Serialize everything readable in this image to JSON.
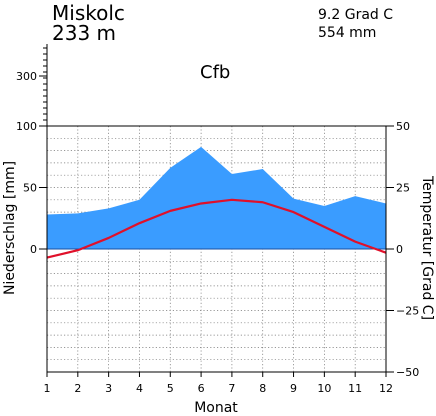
{
  "header": {
    "station": "Miskolc",
    "elevation": "233 m",
    "mean_temperature": "9.2 Grad C",
    "annual_precipitation": "554 mm",
    "climate_class": "Cfb"
  },
  "chart_data": {
    "type": "area",
    "xlabel": "Monat",
    "ylabel_left": "Niederschlag [mm]",
    "ylabel_right": "Temperatur [Grad C]",
    "categories": [
      "1",
      "2",
      "3",
      "4",
      "5",
      "6",
      "7",
      "8",
      "9",
      "10",
      "11",
      "12"
    ],
    "precip_ticks": [
      "300",
      "100",
      "50",
      "0"
    ],
    "precip_tick_values": [
      300,
      100,
      50,
      0
    ],
    "temp_ticks": [
      "50",
      "25",
      "0",
      "−25",
      "−50"
    ],
    "temp_tick_values": [
      50,
      25,
      0,
      -25,
      -50
    ],
    "temp_range": [
      -50,
      50
    ],
    "precip_range": [
      0,
      100
    ],
    "grid": true,
    "series": [
      {
        "name": "Niederschlag",
        "unit": "mm",
        "color": "#3a9cff",
        "values": [
          28,
          29,
          33,
          40,
          66,
          83,
          61,
          65,
          41,
          35,
          43,
          37
        ]
      },
      {
        "name": "Temperatur",
        "unit": "Grad C",
        "color": "#e0102a",
        "values": [
          -3.5,
          -0.5,
          4.5,
          10.5,
          15.5,
          18.5,
          20.0,
          19.0,
          15.0,
          9.0,
          3.0,
          -1.5
        ]
      }
    ]
  }
}
